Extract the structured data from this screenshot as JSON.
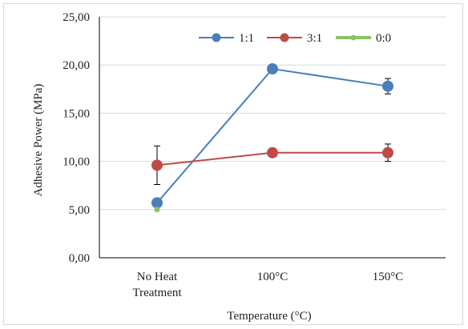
{
  "chart_data": {
    "type": "line",
    "title": "",
    "xlabel": "Temperature (°C)",
    "ylabel": "Adhesive Power (MPa)",
    "ylim": [
      0,
      25
    ],
    "yticks": [
      "0,00",
      "5,00",
      "10,00",
      "15,00",
      "20,00",
      "25,00"
    ],
    "ytick_values": [
      0,
      5,
      10,
      15,
      20,
      25
    ],
    "categories": [
      [
        "No Heat",
        "Treatment"
      ],
      [
        "100°C"
      ],
      [
        "150°C"
      ]
    ],
    "grid": "horizontal",
    "legend_position": "top-right",
    "series": [
      {
        "name": "1:1",
        "color": "#4a7ebb",
        "values": [
          5.7,
          19.6,
          17.8
        ],
        "errors": [
          null,
          null,
          0.8
        ]
      },
      {
        "name": "3:1",
        "color": "#be4b48",
        "values": [
          9.6,
          10.9,
          10.9
        ],
        "errors": [
          2.0,
          null,
          0.9
        ]
      },
      {
        "name": "0:0",
        "color": "#8cc168",
        "values": [
          5.0,
          null,
          null
        ],
        "errors": [
          null,
          null,
          null
        ]
      }
    ]
  }
}
